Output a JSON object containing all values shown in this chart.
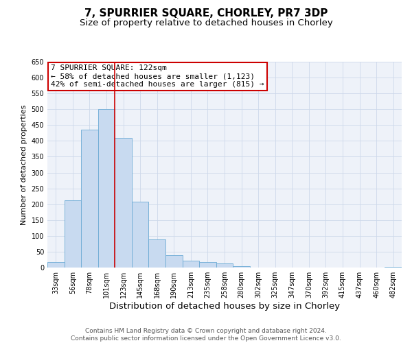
{
  "title": "7, SPURRIER SQUARE, CHORLEY, PR7 3DP",
  "subtitle": "Size of property relative to detached houses in Chorley",
  "xlabel": "Distribution of detached houses by size in Chorley",
  "ylabel": "Number of detached properties",
  "bar_labels": [
    "33sqm",
    "56sqm",
    "78sqm",
    "101sqm",
    "123sqm",
    "145sqm",
    "168sqm",
    "190sqm",
    "213sqm",
    "235sqm",
    "258sqm",
    "280sqm",
    "302sqm",
    "325sqm",
    "347sqm",
    "370sqm",
    "392sqm",
    "415sqm",
    "437sqm",
    "460sqm",
    "482sqm"
  ],
  "bar_values": [
    18,
    213,
    435,
    500,
    410,
    207,
    88,
    40,
    22,
    18,
    13,
    5,
    1,
    1,
    1,
    1,
    0,
    0,
    1,
    0,
    3
  ],
  "bar_color": "#c8daf0",
  "bar_edge_color": "#6aaad4",
  "property_line_color": "#cc0000",
  "property_line_x": 4.5,
  "annotation_title": "7 SPURRIER SQUARE: 122sqm",
  "annotation_line1": "← 58% of detached houses are smaller (1,123)",
  "annotation_line2": "42% of semi-detached houses are larger (815) →",
  "annotation_box_color": "#cc0000",
  "ylim": [
    0,
    650
  ],
  "yticks": [
    0,
    50,
    100,
    150,
    200,
    250,
    300,
    350,
    400,
    450,
    500,
    550,
    600,
    650
  ],
  "grid_color": "#cdd8ea",
  "bg_color": "#eef2f9",
  "footer_line1": "Contains HM Land Registry data © Crown copyright and database right 2024.",
  "footer_line2": "Contains public sector information licensed under the Open Government Licence v3.0.",
  "title_fontsize": 11,
  "subtitle_fontsize": 9.5,
  "xlabel_fontsize": 9.5,
  "ylabel_fontsize": 8,
  "tick_fontsize": 7,
  "annotation_fontsize": 8,
  "footer_fontsize": 6.5
}
